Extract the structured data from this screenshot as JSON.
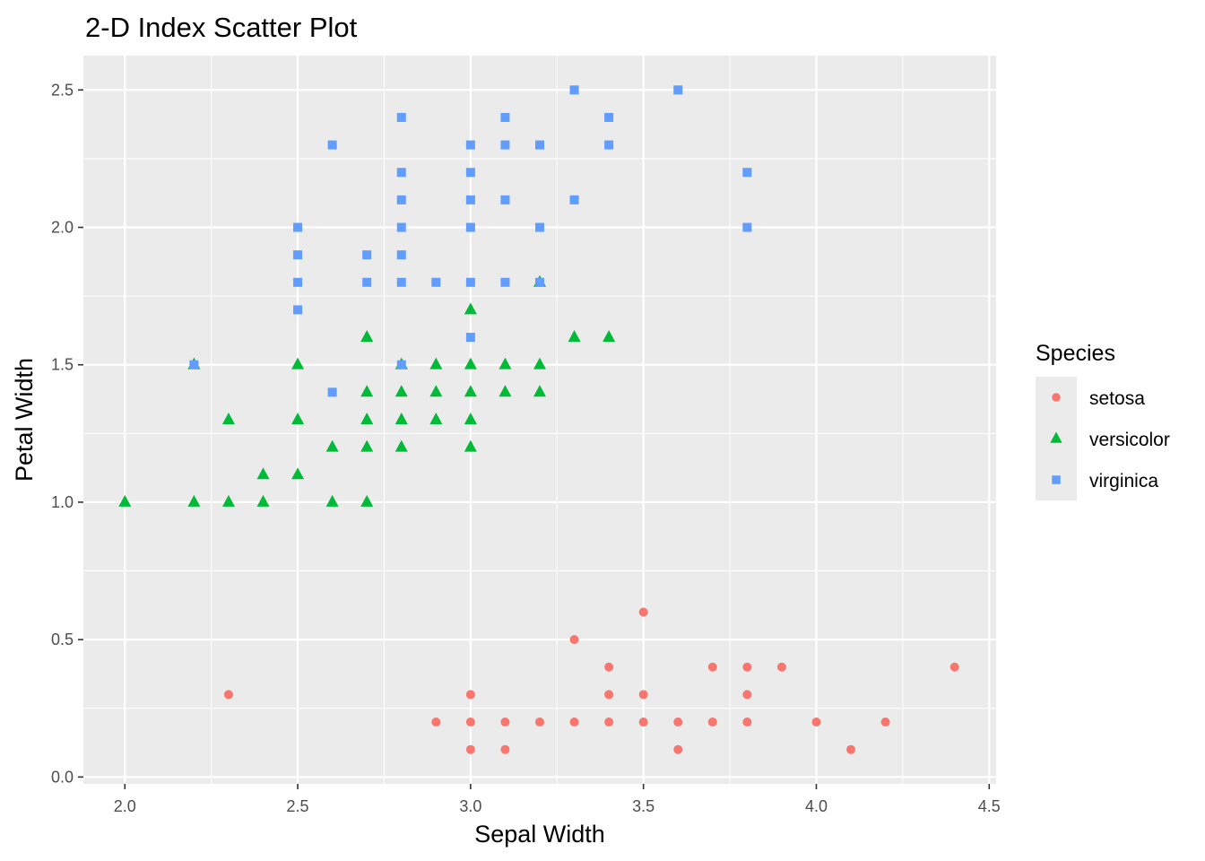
{
  "chart_data": {
    "type": "scatter",
    "title": "2-D Index Scatter Plot",
    "xlabel": "Sepal Width",
    "ylabel": "Petal Width",
    "xlim": [
      1.88,
      4.52
    ],
    "ylim": [
      -0.025,
      2.625
    ],
    "x_ticks": [
      2.0,
      2.5,
      3.0,
      3.5,
      4.0,
      4.5
    ],
    "x_tick_labels": [
      "2.0",
      "2.5",
      "3.0",
      "3.5",
      "4.0",
      "4.5"
    ],
    "y_ticks": [
      0.0,
      0.5,
      1.0,
      1.5,
      2.0,
      2.5
    ],
    "y_tick_labels": [
      "0.0",
      "0.5",
      "1.0",
      "1.5",
      "2.0",
      "2.5"
    ],
    "grid": true,
    "panel_background": "#EBEBEB",
    "grid_color": "#FFFFFF",
    "legend": {
      "title": "Species",
      "position": "right"
    },
    "series": [
      {
        "name": "setosa",
        "shape": "circle",
        "color": "#F8766D",
        "points": [
          [
            2.3,
            0.3
          ],
          [
            2.9,
            0.2
          ],
          [
            3.0,
            0.1
          ],
          [
            3.0,
            0.2
          ],
          [
            3.0,
            0.3
          ],
          [
            3.1,
            0.1
          ],
          [
            3.1,
            0.2
          ],
          [
            3.2,
            0.2
          ],
          [
            3.3,
            0.2
          ],
          [
            3.3,
            0.5
          ],
          [
            3.4,
            0.2
          ],
          [
            3.4,
            0.3
          ],
          [
            3.4,
            0.4
          ],
          [
            3.5,
            0.2
          ],
          [
            3.5,
            0.3
          ],
          [
            3.5,
            0.6
          ],
          [
            3.6,
            0.1
          ],
          [
            3.6,
            0.2
          ],
          [
            3.7,
            0.2
          ],
          [
            3.7,
            0.4
          ],
          [
            3.8,
            0.2
          ],
          [
            3.8,
            0.3
          ],
          [
            3.8,
            0.4
          ],
          [
            3.9,
            0.4
          ],
          [
            4.0,
            0.2
          ],
          [
            4.1,
            0.1
          ],
          [
            4.2,
            0.2
          ],
          [
            4.4,
            0.4
          ]
        ]
      },
      {
        "name": "versicolor",
        "shape": "triangle",
        "color": "#00BA38",
        "points": [
          [
            2.0,
            1.0
          ],
          [
            2.2,
            1.0
          ],
          [
            2.2,
            1.5
          ],
          [
            2.3,
            1.0
          ],
          [
            2.3,
            1.3
          ],
          [
            2.4,
            1.0
          ],
          [
            2.4,
            1.1
          ],
          [
            2.5,
            1.1
          ],
          [
            2.5,
            1.3
          ],
          [
            2.5,
            1.5
          ],
          [
            2.6,
            1.0
          ],
          [
            2.6,
            1.2
          ],
          [
            2.7,
            1.0
          ],
          [
            2.7,
            1.2
          ],
          [
            2.7,
            1.3
          ],
          [
            2.7,
            1.4
          ],
          [
            2.7,
            1.6
          ],
          [
            2.8,
            1.2
          ],
          [
            2.8,
            1.3
          ],
          [
            2.8,
            1.4
          ],
          [
            2.8,
            1.5
          ],
          [
            2.9,
            1.3
          ],
          [
            2.9,
            1.4
          ],
          [
            2.9,
            1.5
          ],
          [
            3.0,
            1.2
          ],
          [
            3.0,
            1.3
          ],
          [
            3.0,
            1.4
          ],
          [
            3.0,
            1.5
          ],
          [
            3.0,
            1.7
          ],
          [
            3.1,
            1.4
          ],
          [
            3.1,
            1.5
          ],
          [
            3.2,
            1.4
          ],
          [
            3.2,
            1.5
          ],
          [
            3.2,
            1.8
          ],
          [
            3.3,
            1.6
          ],
          [
            3.4,
            1.6
          ]
        ]
      },
      {
        "name": "virginica",
        "shape": "square",
        "color": "#619CFF",
        "points": [
          [
            2.2,
            1.5
          ],
          [
            2.5,
            1.7
          ],
          [
            2.5,
            1.8
          ],
          [
            2.5,
            1.9
          ],
          [
            2.5,
            2.0
          ],
          [
            2.6,
            1.4
          ],
          [
            2.6,
            2.3
          ],
          [
            2.7,
            1.8
          ],
          [
            2.7,
            1.9
          ],
          [
            2.8,
            1.5
          ],
          [
            2.8,
            1.8
          ],
          [
            2.8,
            1.9
          ],
          [
            2.8,
            2.0
          ],
          [
            2.8,
            2.1
          ],
          [
            2.8,
            2.2
          ],
          [
            2.8,
            2.4
          ],
          [
            2.9,
            1.8
          ],
          [
            3.0,
            1.6
          ],
          [
            3.0,
            1.8
          ],
          [
            3.0,
            2.0
          ],
          [
            3.0,
            2.1
          ],
          [
            3.0,
            2.2
          ],
          [
            3.0,
            2.3
          ],
          [
            3.1,
            1.8
          ],
          [
            3.1,
            2.1
          ],
          [
            3.1,
            2.3
          ],
          [
            3.1,
            2.4
          ],
          [
            3.2,
            1.8
          ],
          [
            3.2,
            2.0
          ],
          [
            3.2,
            2.3
          ],
          [
            3.3,
            2.1
          ],
          [
            3.3,
            2.5
          ],
          [
            3.4,
            2.3
          ],
          [
            3.4,
            2.4
          ],
          [
            3.6,
            2.5
          ],
          [
            3.8,
            2.0
          ],
          [
            3.8,
            2.2
          ]
        ]
      }
    ]
  }
}
